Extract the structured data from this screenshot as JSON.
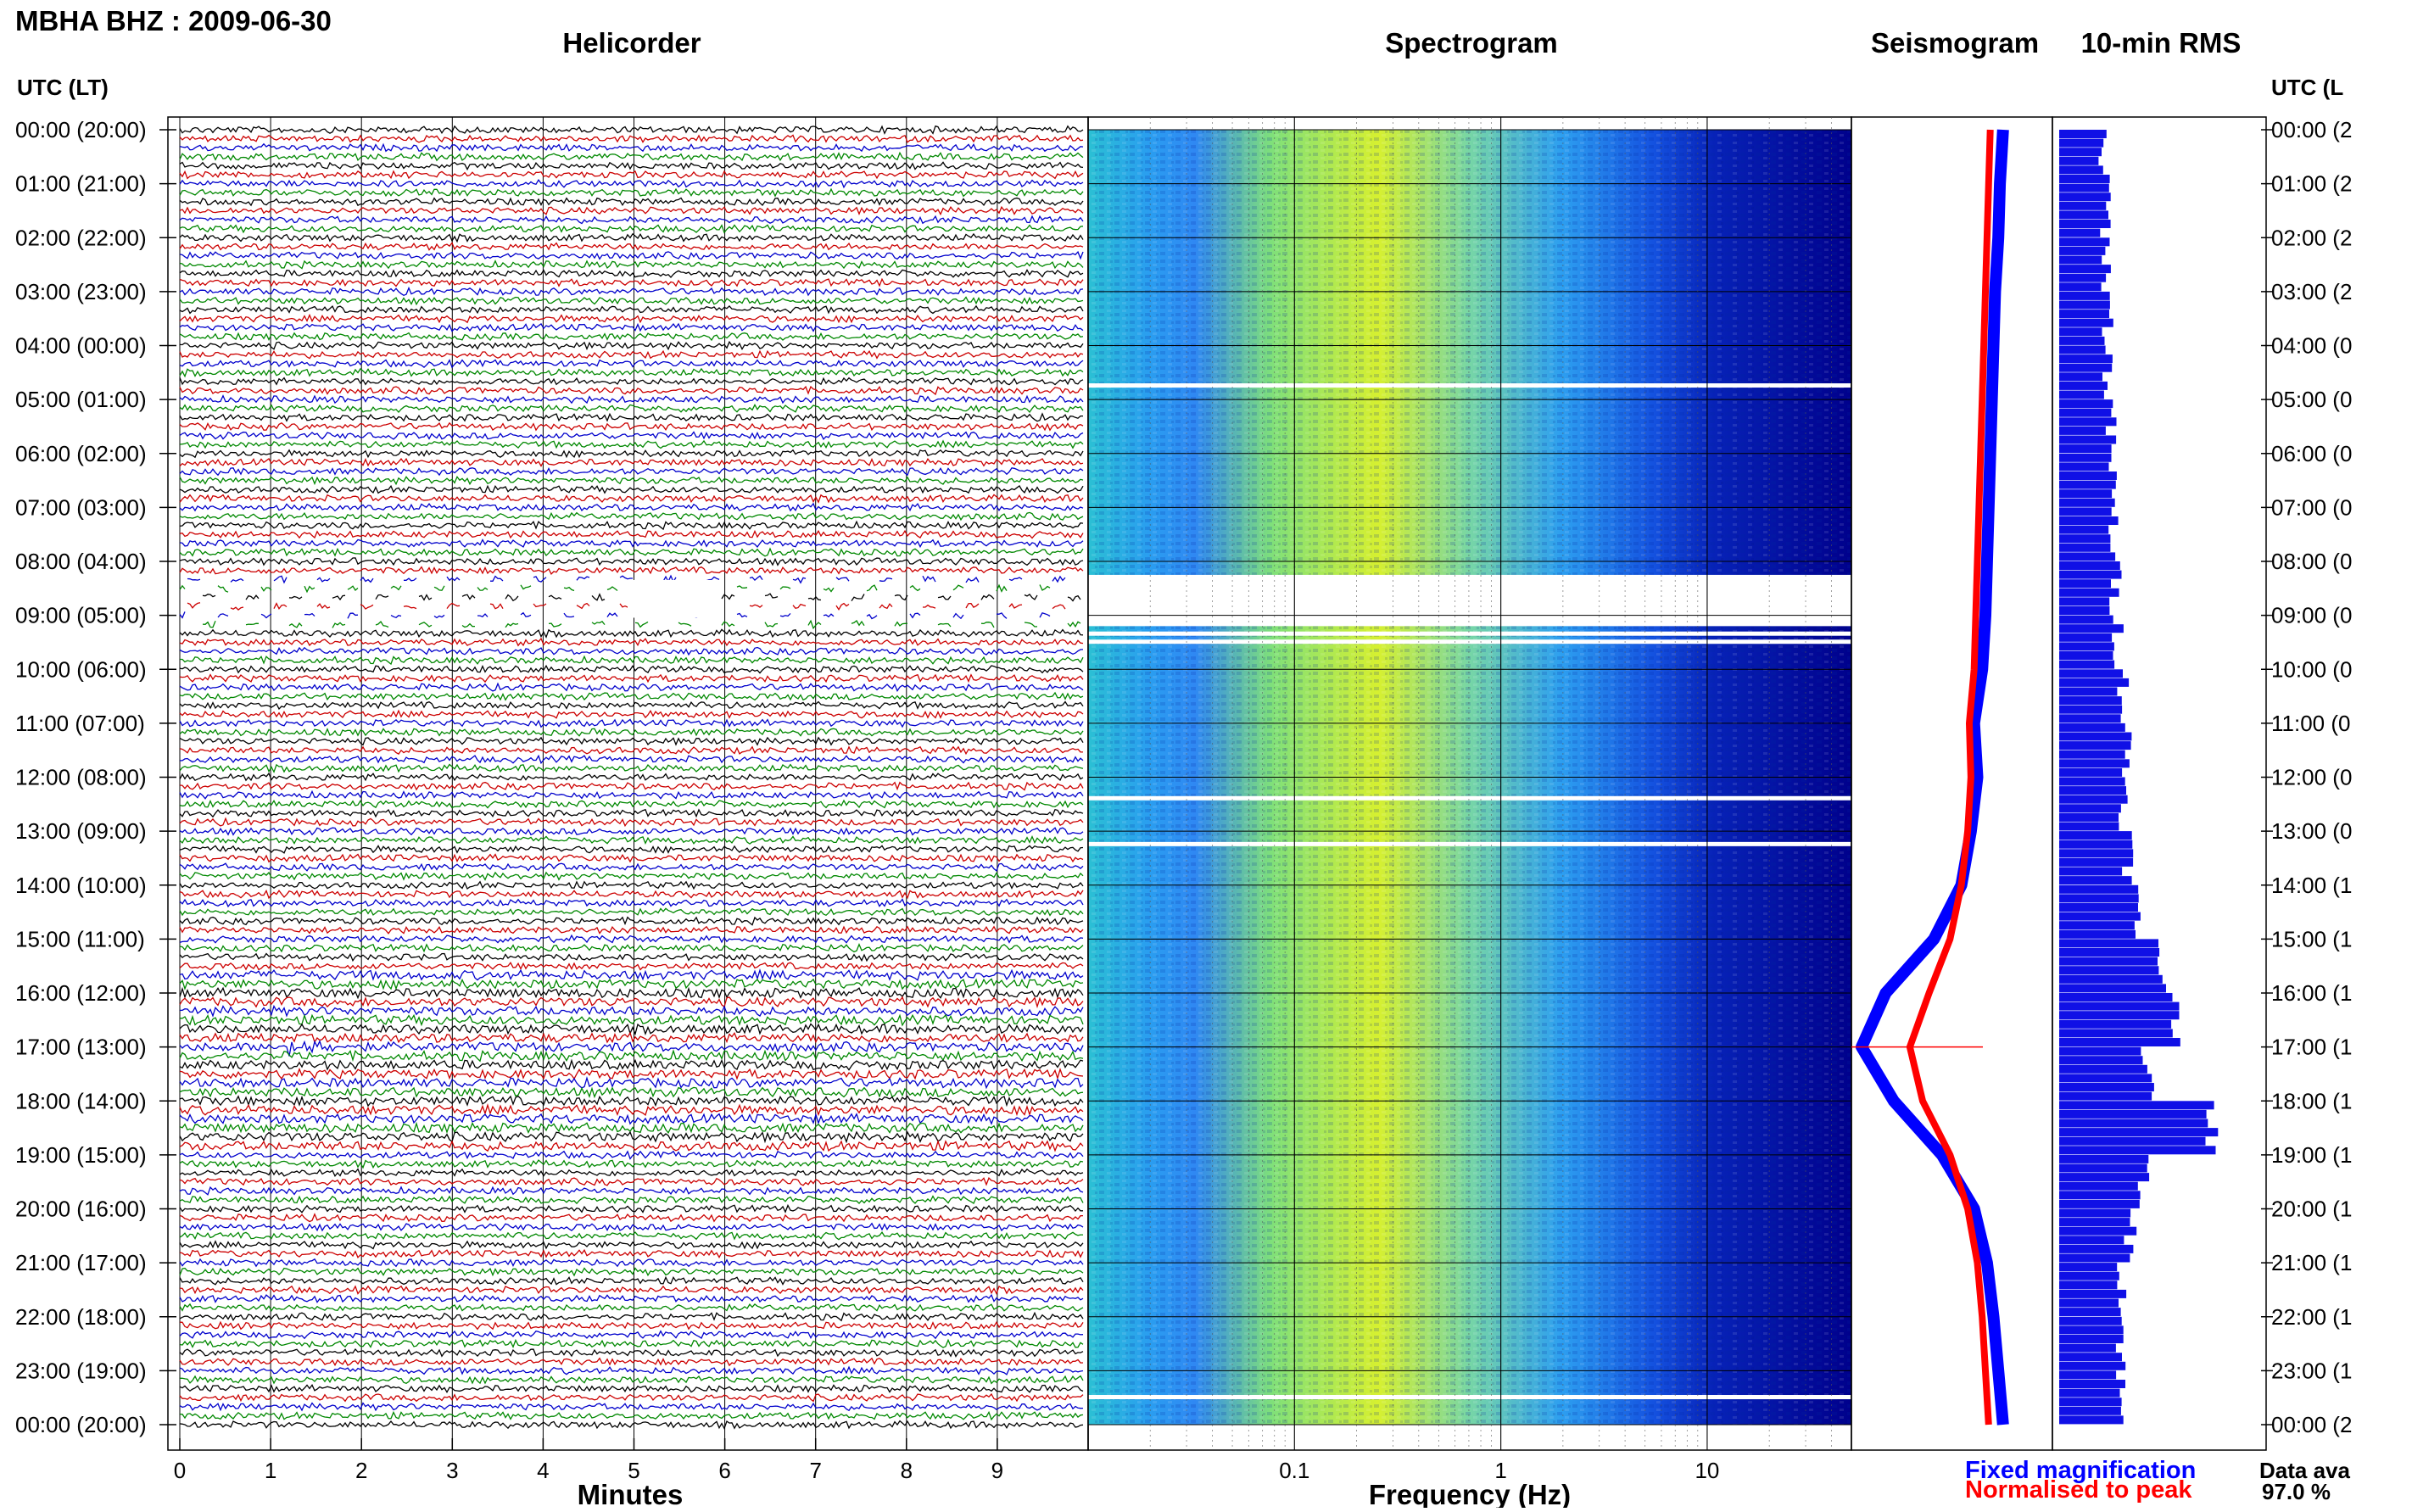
{
  "header": {
    "station": "MBHA BHZ : 2009-06-30",
    "helicorder": "Helicorder",
    "spectrogram": "Spectrogram",
    "seismogram": "Seismogram",
    "rms": "10-min RMS",
    "utc_left": "UTC (LT)",
    "utc_right": "UTC (L"
  },
  "time_labels_left": [
    "00:00 (20:00)",
    "01:00 (21:00)",
    "02:00 (22:00)",
    "03:00 (23:00)",
    "04:00 (00:00)",
    "05:00 (01:00)",
    "06:00 (02:00)",
    "07:00 (03:00)",
    "08:00 (04:00)",
    "09:00 (05:00)",
    "10:00 (06:00)",
    "11:00 (07:00)",
    "12:00 (08:00)",
    "13:00 (09:00)",
    "14:00 (10:00)",
    "15:00 (11:00)",
    "16:00 (12:00)",
    "17:00 (13:00)",
    "18:00 (14:00)",
    "19:00 (15:00)",
    "20:00 (16:00)",
    "21:00 (17:00)",
    "22:00 (18:00)",
    "23:00 (19:00)",
    "00:00 (20:00)"
  ],
  "time_labels_right": [
    "00:00 (2",
    "01:00 (2",
    "02:00 (2",
    "03:00 (2",
    "04:00 (0",
    "05:00 (0",
    "06:00 (0",
    "07:00 (0",
    "08:00 (0",
    "09:00 (0",
    "10:00 (0",
    "11:00 (0",
    "12:00 (0",
    "13:00 (0",
    "14:00 (1",
    "15:00 (1",
    "16:00 (1",
    "17:00 (1",
    "18:00 (1",
    "19:00 (1",
    "20:00 (1",
    "21:00 (1",
    "22:00 (1",
    "23:00 (1",
    "00:00 (2"
  ],
  "helicorder_axis": {
    "ticks": [
      "0",
      "1",
      "2",
      "3",
      "4",
      "5",
      "6",
      "7",
      "8",
      "9"
    ],
    "xlabel": "Minutes"
  },
  "spectrogram_axis": {
    "ticks": [
      "0.1",
      "1",
      "10"
    ],
    "xlabel": "Frequency (Hz)"
  },
  "legend": {
    "fixed": "Fixed magnification",
    "normalised": "Normalised to peak",
    "data_availability": "Data ava",
    "data_percent": "97.0 %"
  },
  "colors": {
    "trace_black": "#000000",
    "trace_red": "#cc0000",
    "trace_blue": "#0000cc",
    "trace_green": "#008800",
    "fixed_curve": "#0000ff",
    "normalised_curve": "#ff0000",
    "rms_bar": "#1010e6",
    "spectrogram_low": "#00008c",
    "spectrogram_high": "#d8f020"
  },
  "chart_data": [
    {
      "type": "line",
      "panel": "helicorder",
      "x_range_minutes": [
        0,
        10
      ],
      "y_range_utc_hours": [
        0,
        24
      ],
      "rows_per_hour": 6,
      "trace_colour_cycle": [
        "black",
        "red",
        "blue",
        "green"
      ],
      "gaps_utc_hours": [
        [
          8.25,
          9.2
        ]
      ],
      "events": [
        {
          "utc_hour": 17.0,
          "minute": 1.2,
          "label": ""
        }
      ]
    },
    {
      "type": "heatmap",
      "panel": "spectrogram",
      "x_scale": "log",
      "x_range_hz": [
        0.01,
        50
      ],
      "peak_energy_band_hz": [
        0.15,
        1.0
      ],
      "gaps_utc_hours": [
        [
          8.25,
          9.2
        ]
      ]
    },
    {
      "type": "line",
      "panel": "seismogram",
      "y_utc_hours": [
        0,
        1,
        2,
        3,
        4,
        5,
        6,
        7,
        8,
        9,
        10,
        11,
        12,
        13,
        14,
        15,
        16,
        17,
        18,
        19,
        20,
        21,
        22,
        23,
        24
      ],
      "series": [
        {
          "name": "Fixed magnification",
          "values": [
            0.88,
            0.86,
            0.85,
            0.83,
            0.82,
            0.81,
            0.8,
            0.79,
            0.78,
            0.77,
            0.75,
            0.7,
            0.72,
            0.68,
            0.62,
            0.45,
            0.15,
            0.0,
            0.2,
            0.5,
            0.7,
            0.78,
            0.82,
            0.85,
            0.88
          ]
        },
        {
          "name": "Normalised to peak",
          "values": [
            0.8,
            0.79,
            0.78,
            0.77,
            0.76,
            0.75,
            0.74,
            0.73,
            0.72,
            0.71,
            0.7,
            0.67,
            0.68,
            0.66,
            0.62,
            0.55,
            0.42,
            0.3,
            0.38,
            0.55,
            0.66,
            0.72,
            0.75,
            0.77,
            0.79
          ]
        }
      ]
    },
    {
      "type": "bar",
      "panel": "10-min RMS",
      "utc_hours": [
        0,
        1,
        2,
        3,
        4,
        5,
        6,
        7,
        8,
        9,
        10,
        11,
        12,
        13,
        14,
        15,
        16,
        17,
        18,
        19,
        20,
        21,
        22,
        23
      ],
      "values": [
        0.26,
        0.28,
        0.28,
        0.29,
        0.29,
        0.3,
        0.31,
        0.32,
        0.33,
        0.35,
        0.38,
        0.4,
        0.39,
        0.41,
        0.45,
        0.6,
        0.7,
        0.52,
        0.9,
        0.5,
        0.42,
        0.38,
        0.37,
        0.36
      ]
    }
  ]
}
